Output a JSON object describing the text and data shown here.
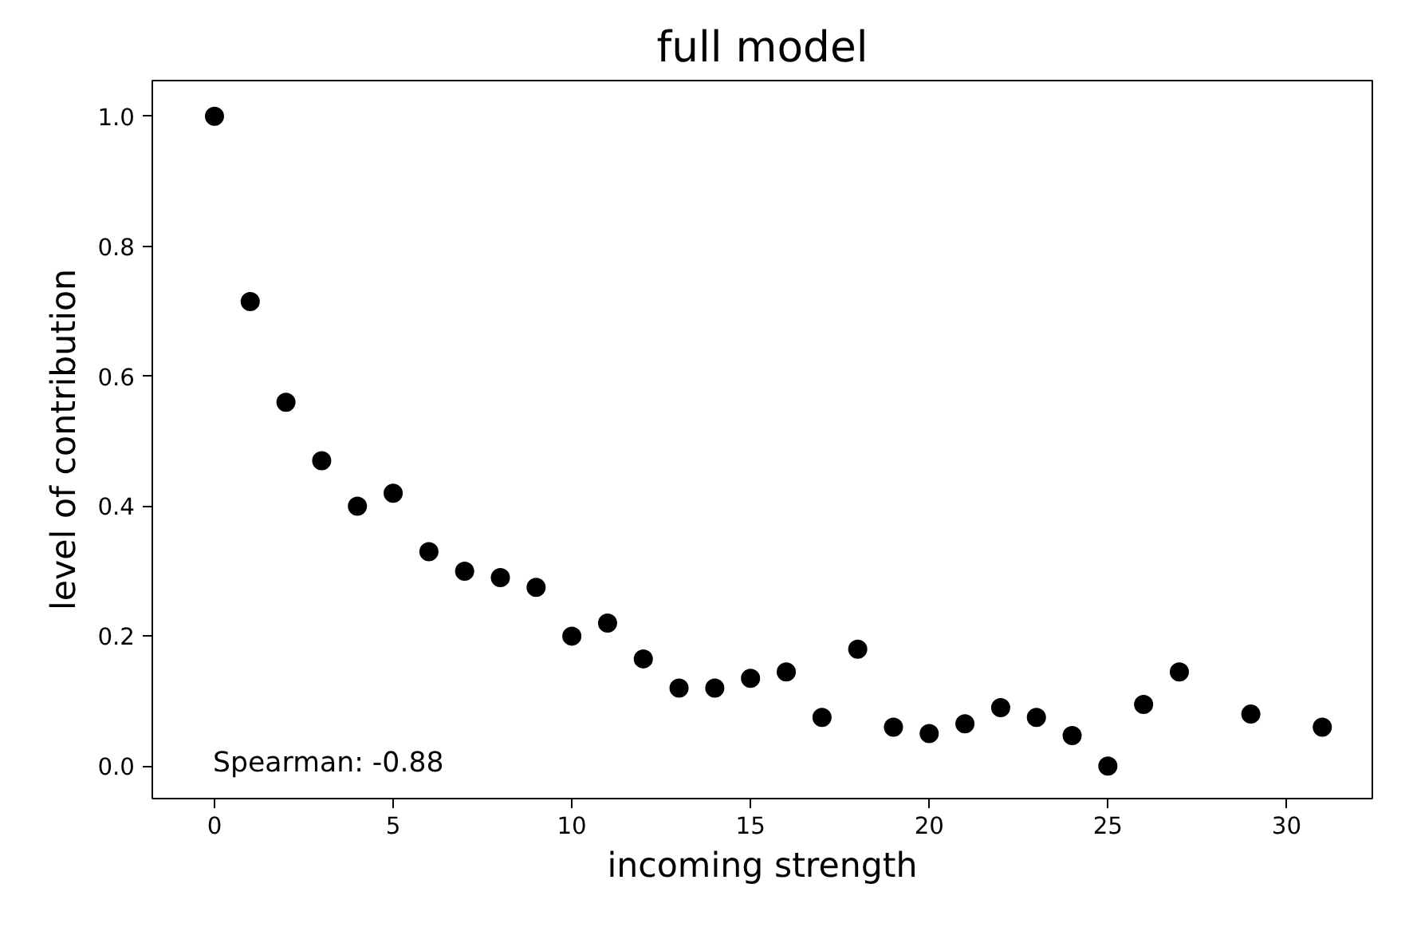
{
  "chart_data": {
    "type": "scatter",
    "title": "full model",
    "xlabel": "incoming strength",
    "ylabel": "level of contribution",
    "x": [
      0,
      1,
      2,
      3,
      4,
      5,
      6,
      7,
      8,
      9,
      10,
      11,
      12,
      13,
      14,
      15,
      16,
      17,
      18,
      19,
      20,
      21,
      22,
      23,
      24,
      25,
      26,
      27,
      29,
      31
    ],
    "series": [
      {
        "color": "#000000",
        "values": [
          1.0,
          0.715,
          0.56,
          0.47,
          0.4,
          0.42,
          0.33,
          0.3,
          0.29,
          0.275,
          0.2,
          0.22,
          0.165,
          0.12,
          0.12,
          0.135,
          0.145,
          0.075,
          0.18,
          0.06,
          0.05,
          0.065,
          0.09,
          0.075,
          0.047,
          0.0,
          0.095,
          0.145,
          0.08,
          0.06
        ]
      }
    ],
    "xlim": [
      -1.74,
      32.4
    ],
    "ylim": [
      -0.05,
      1.055
    ],
    "xticks": [
      0,
      5,
      10,
      15,
      20,
      25,
      30
    ],
    "yticks": [
      {
        "value": 0,
        "label": "0.0"
      },
      {
        "value": 0.2,
        "label": "0.2"
      },
      {
        "value": 0.4,
        "label": "0.4"
      },
      {
        "value": 0.6,
        "label": "0.6"
      },
      {
        "value": 0.8,
        "label": "0.8"
      },
      {
        "value": 1.0,
        "label": "1.0"
      }
    ],
    "annotations": [
      "Spearman: -0.88"
    ],
    "grid": false,
    "marker": "circle"
  }
}
